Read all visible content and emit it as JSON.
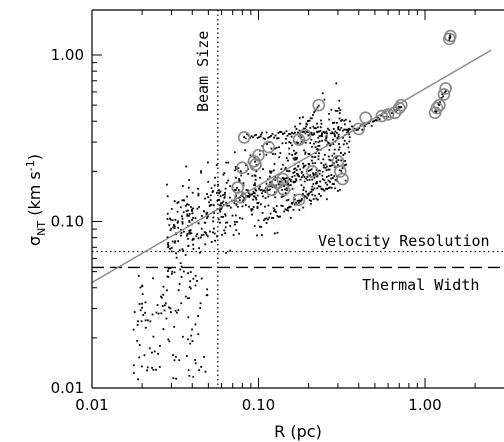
{
  "chart_data": {
    "type": "scatter",
    "xscale": "log",
    "yscale": "log",
    "xlim": [
      0.01,
      2.5
    ],
    "ylim": [
      0.01,
      2.0
    ],
    "xlabel": "R (pc)",
    "ylabel_main": "σ",
    "ylabel_sub": "NT",
    "ylabel_units_pre": " (km s",
    "ylabel_units_sup": "-1",
    "ylabel_units_post": ")",
    "xticks": [
      0.01,
      0.1,
      1.0
    ],
    "xtick_labels": [
      "0.01",
      "0.10",
      "1.00"
    ],
    "yticks": [
      0.01,
      0.1,
      1.0
    ],
    "ytick_labels": [
      "0.01",
      "0.10",
      "1.00"
    ],
    "annotations": {
      "beam_size": "Beam Size",
      "velocity_resolution": "Velocity Resolution",
      "thermal_width": "Thermal Width"
    },
    "beam_size_x": 0.057,
    "velocity_resolution_y": 0.066,
    "thermal_width_y": 0.053,
    "fit_line": {
      "x": [
        0.01,
        2.5
      ],
      "y": [
        0.043,
        1.07
      ]
    },
    "circled_points": [
      [
        0.082,
        0.32
      ],
      [
        0.075,
        0.16
      ],
      [
        0.08,
        0.21
      ],
      [
        0.078,
        0.14
      ],
      [
        0.094,
        0.23
      ],
      [
        0.096,
        0.22
      ],
      [
        0.1,
        0.25
      ],
      [
        0.115,
        0.28
      ],
      [
        0.13,
        0.17
      ],
      [
        0.12,
        0.155
      ],
      [
        0.14,
        0.18
      ],
      [
        0.142,
        0.155
      ],
      [
        0.175,
        0.31
      ],
      [
        0.19,
        0.33
      ],
      [
        0.23,
        0.5
      ],
      [
        0.175,
        0.135
      ],
      [
        0.21,
        0.2
      ],
      [
        0.3,
        0.23
      ],
      [
        0.31,
        0.2
      ],
      [
        0.32,
        0.18
      ],
      [
        0.4,
        0.36
      ],
      [
        0.44,
        0.42
      ],
      [
        0.55,
        0.43
      ],
      [
        0.6,
        0.44
      ],
      [
        0.66,
        0.45
      ],
      [
        0.7,
        0.48
      ],
      [
        0.72,
        0.5
      ],
      [
        1.15,
        0.45
      ],
      [
        1.18,
        0.48
      ],
      [
        1.22,
        0.5
      ],
      [
        1.3,
        0.58
      ],
      [
        1.33,
        0.63
      ],
      [
        1.4,
        1.25
      ],
      [
        1.42,
        1.3
      ]
    ]
  }
}
